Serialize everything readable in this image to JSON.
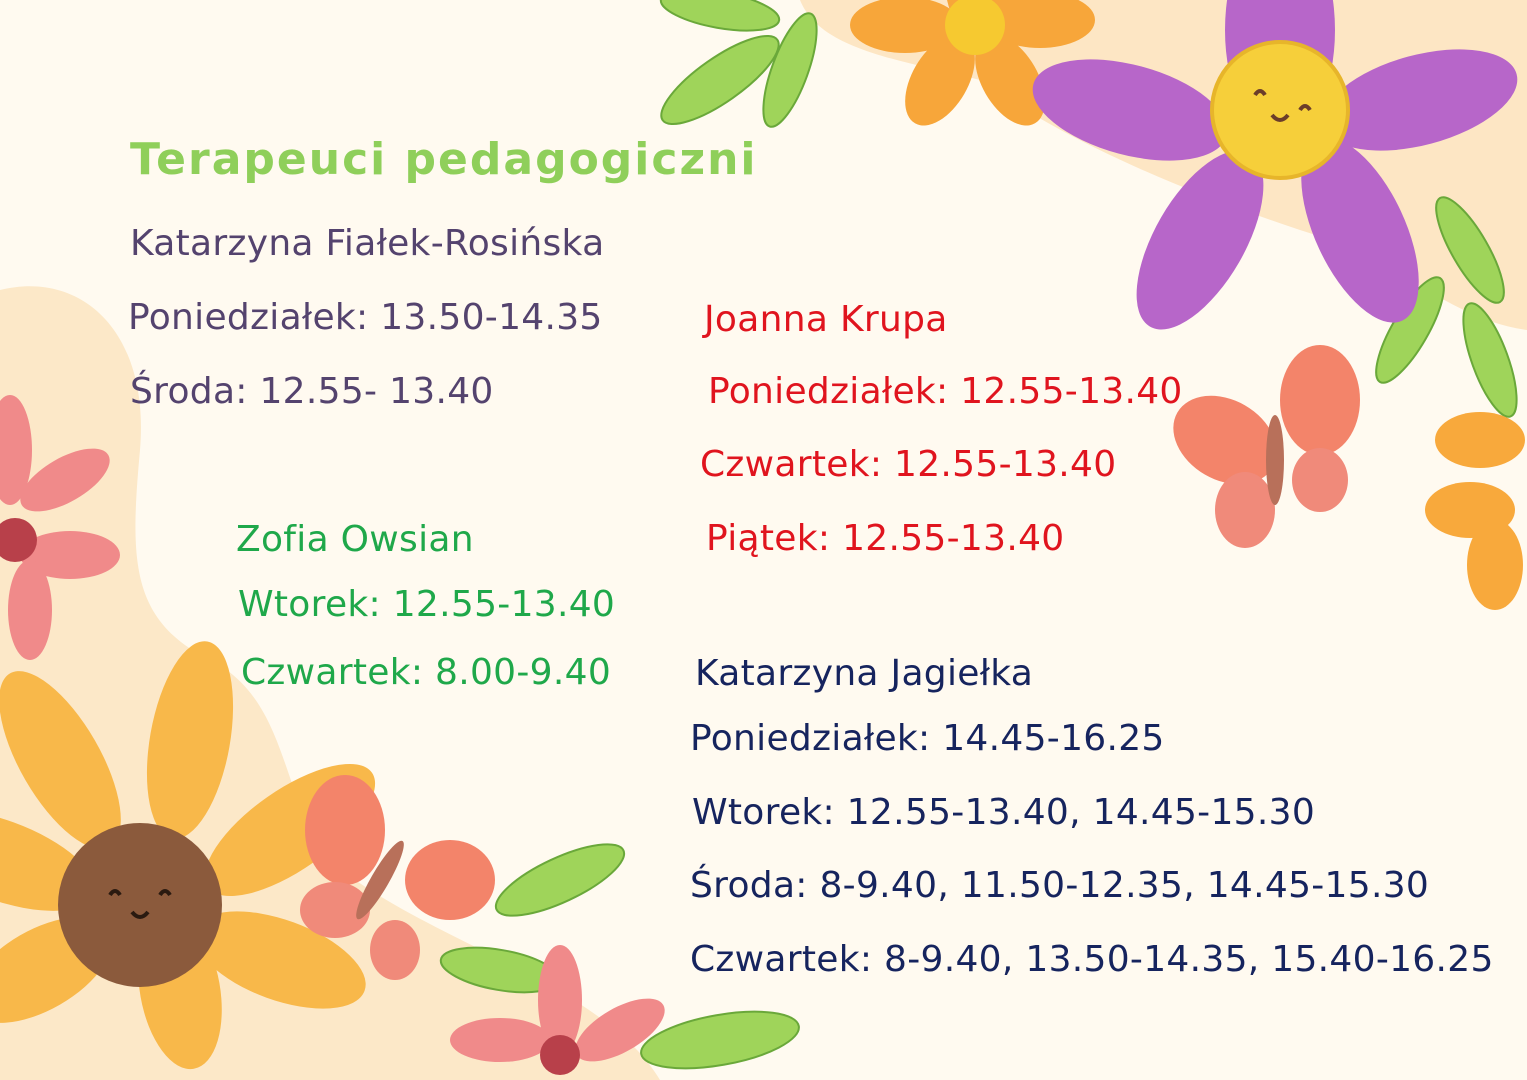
{
  "title": "Terapeuci pedagogiczni",
  "colors": {
    "title": "#8fcf5a",
    "therapist1": "#54436e",
    "therapist2": "#e0141e",
    "therapist3": "#1fa84a",
    "therapist4": "#16245e",
    "background": "#fffaf0"
  },
  "therapists": [
    {
      "name": "Katarzyna Fiałek-Rosińska",
      "schedule": [
        "Poniedziałek: 13.50-14.35",
        "Środa: 12.55- 13.40"
      ]
    },
    {
      "name": "Joanna Krupa",
      "schedule": [
        "Poniedziałek: 12.55-13.40",
        "Czwartek: 12.55-13.40",
        "Piątek: 12.55-13.40"
      ]
    },
    {
      "name": "Zofia Owsian",
      "schedule": [
        "Wtorek: 12.55-13.40",
        "Czwartek: 8.00-9.40"
      ]
    },
    {
      "name": "Katarzyna Jagiełka",
      "schedule": [
        "Poniedziałek: 14.45-16.25",
        "Wtorek: 12.55-13.40, 14.45-15.30",
        "Środa: 8-9.40, 11.50-12.35, 14.45-15.30",
        "Czwartek: 8-9.40, 13.50-14.35, 15.40-16.25"
      ]
    }
  ]
}
